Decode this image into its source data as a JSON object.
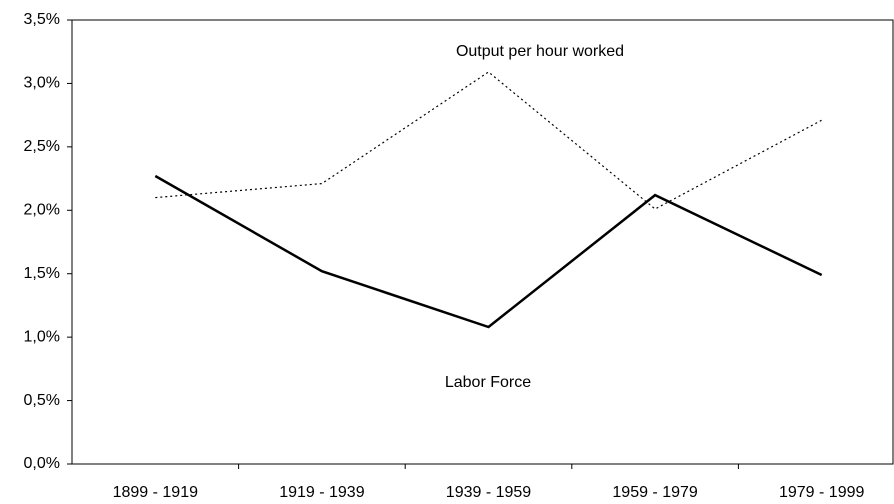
{
  "chart_data": {
    "type": "line",
    "categories": [
      "1899 - 1919",
      "1919 - 1939",
      "1939 - 1959",
      "1959 - 1979",
      "1979 - 1999"
    ],
    "series": [
      {
        "name": "Output per hour worked",
        "color": "#000000",
        "style": "dotted",
        "values": [
          2.1,
          2.21,
          3.09,
          2.01,
          2.71
        ]
      },
      {
        "name": "Labor Force",
        "color": "#000000",
        "style": "solid",
        "values": [
          2.27,
          1.52,
          1.08,
          2.12,
          1.49
        ]
      }
    ],
    "ylim": [
      0,
      3.5
    ],
    "yticks": [
      {
        "value": 0,
        "label": "0,0%"
      },
      {
        "value": 0.5,
        "label": "0,5%"
      },
      {
        "value": 1,
        "label": "1,0%"
      },
      {
        "value": 1.5,
        "label": "1,5%"
      },
      {
        "value": 2,
        "label": "2,0%"
      },
      {
        "value": 2.5,
        "label": "2,5%"
      },
      {
        "value": 3,
        "label": "3,0%"
      },
      {
        "value": 3.5,
        "label": "3,5%"
      }
    ],
    "grid": false
  }
}
